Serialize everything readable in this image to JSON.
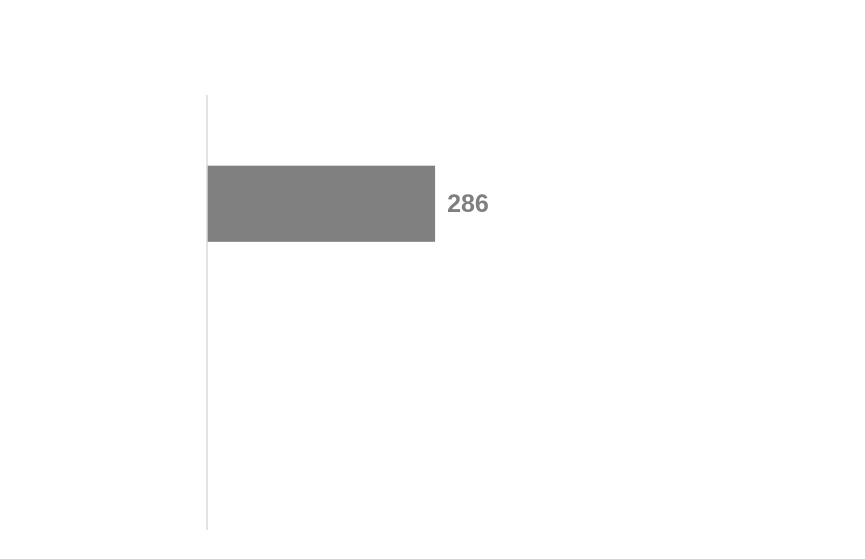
{
  "chart_data": {
    "type": "bar",
    "orientation": "horizontal",
    "categories": [
      "",
      ""
    ],
    "values": [
      286,
      null
    ],
    "data_labels": [
      "286",
      ""
    ],
    "title": "",
    "xlabel": "",
    "ylabel": "",
    "xlim": [
      0,
      800
    ],
    "grid": false,
    "legend": "none",
    "colors": {
      "bar": "#808080",
      "label": "#7f7f7f",
      "axis": "#d9d9d9",
      "background": "#ffffff"
    }
  }
}
